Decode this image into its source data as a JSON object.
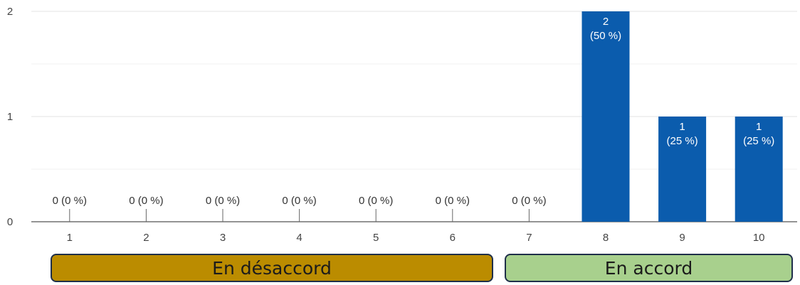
{
  "chart_data": {
    "type": "bar",
    "categories": [
      "1",
      "2",
      "3",
      "4",
      "5",
      "6",
      "7",
      "8",
      "9",
      "10"
    ],
    "values": [
      0,
      0,
      0,
      0,
      0,
      0,
      0,
      2,
      1,
      1
    ],
    "percents": [
      "0 %",
      "0 %",
      "0 %",
      "0 %",
      "0 %",
      "0 %",
      "0 %",
      "50 %",
      "25 %",
      "25 %"
    ],
    "bar_labels": [
      "0 (0 %)",
      "0 (0 %)",
      "0 (0 %)",
      "0 (0 %)",
      "0 (0 %)",
      "0 (0 %)",
      "0 (0 %)",
      "2\n(50 %)",
      "1\n(25 %)",
      "1\n(25 %)"
    ],
    "ylim": [
      0,
      2
    ],
    "yticks": [
      "0",
      "1",
      "2"
    ],
    "grid": true,
    "bar_color": "#0b5cad"
  },
  "legend_groups": {
    "disagree": {
      "label": "En désaccord",
      "color": "#bb8c00"
    },
    "agree": {
      "label": "En accord",
      "color": "#a8d08d"
    }
  }
}
